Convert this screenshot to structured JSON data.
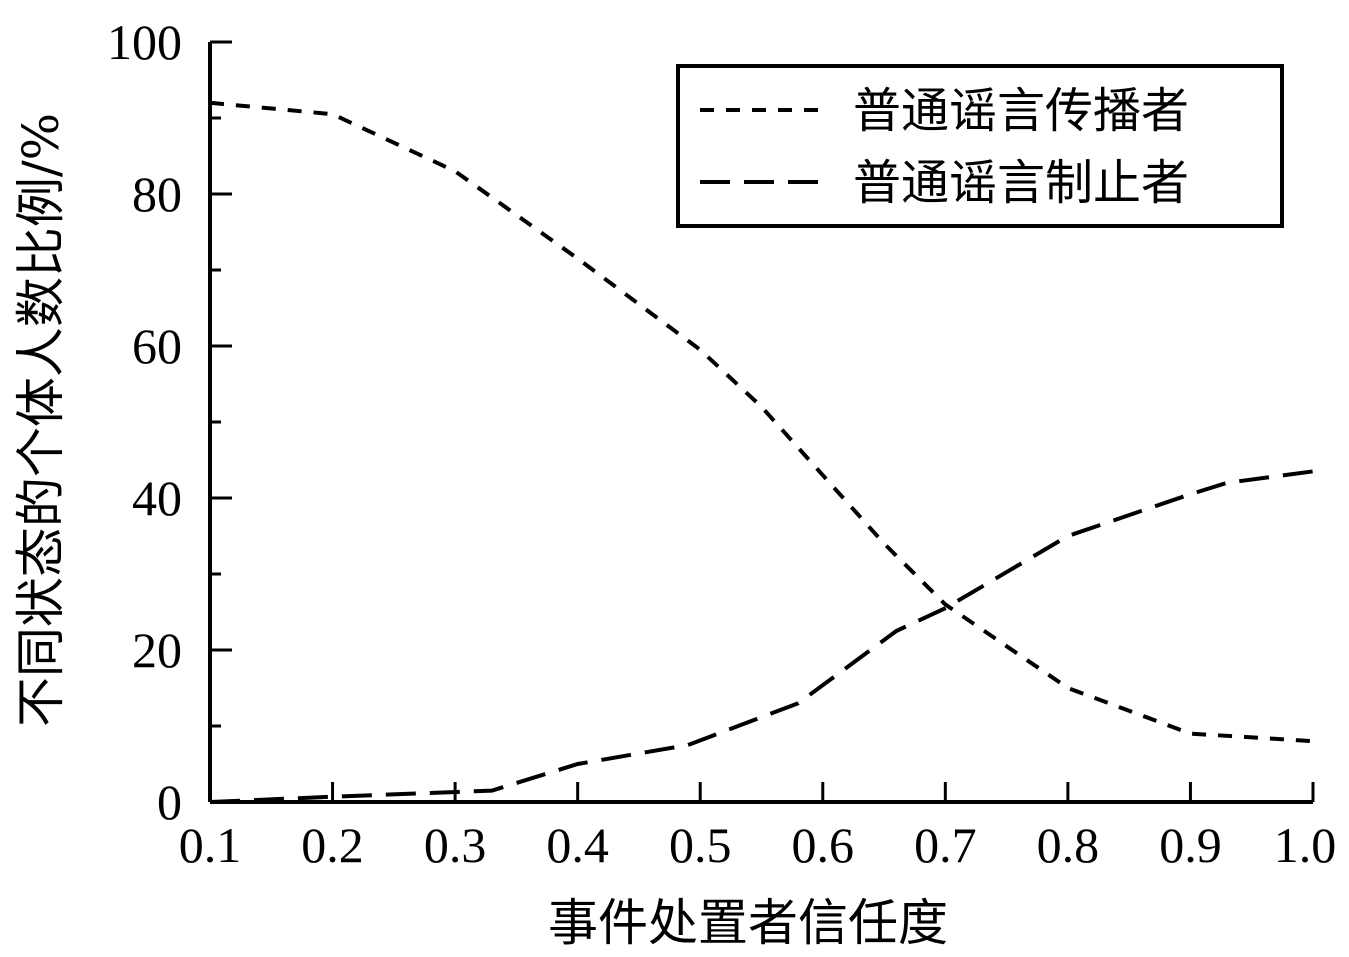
{
  "chart_data": {
    "type": "line",
    "title": "",
    "xlabel": "事件处置者信任度",
    "ylabel": "不同状态的个体人数比例/%",
    "xlim": [
      0.1,
      1.0
    ],
    "ylim": [
      0,
      100
    ],
    "xticks": [
      "0.1",
      "0.2",
      "0.3",
      "0.4",
      "0.5",
      "0.6",
      "0.7",
      "0.8",
      "0.9",
      "1.0"
    ],
    "yticks": [
      "0",
      "20",
      "40",
      "60",
      "80",
      "100"
    ],
    "grid": false,
    "legend_position": "top-right",
    "series": [
      {
        "name": "普通谣言传播者",
        "dash": "short",
        "x": [
          0.1,
          0.2,
          0.3,
          0.4,
          0.5,
          0.55,
          0.6,
          0.65,
          0.7,
          0.8,
          0.9,
          1.0
        ],
        "y": [
          92,
          90.5,
          83,
          71.5,
          59.5,
          52,
          43,
          34,
          26,
          15,
          9,
          8
        ]
      },
      {
        "name": "普通谣言制止者",
        "dash": "long",
        "x": [
          0.1,
          0.2,
          0.33,
          0.4,
          0.49,
          0.58,
          0.66,
          0.7,
          0.8,
          0.9,
          0.93,
          1.0
        ],
        "y": [
          0,
          0.7,
          1.5,
          5,
          7.5,
          13,
          22.5,
          25.5,
          35,
          40.5,
          42,
          43.5
        ]
      }
    ]
  }
}
